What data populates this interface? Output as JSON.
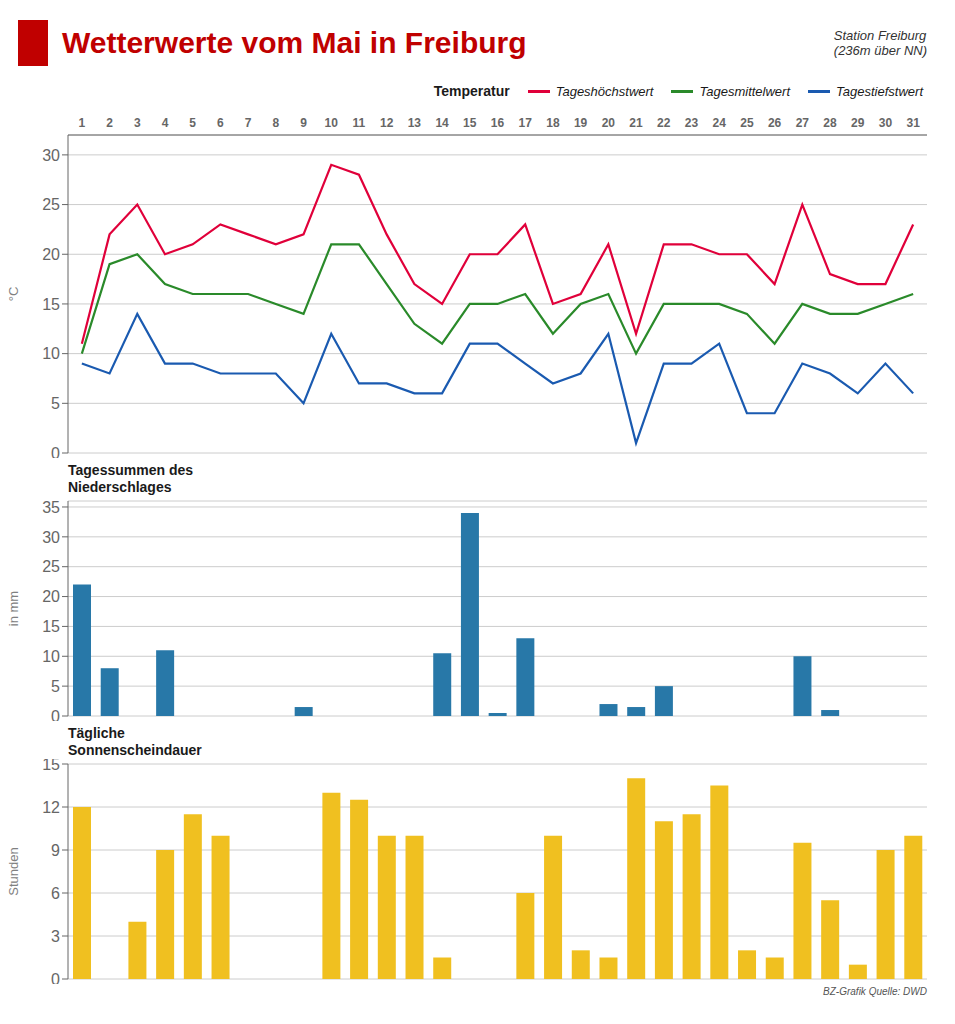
{
  "chart_data": [
    {
      "type": "line",
      "title": "Wetterwerte vom Mai in Freiburg",
      "annotations": [
        "Station Freiburg\n(236m über NN)",
        "Temperatur"
      ],
      "x": [
        1,
        2,
        3,
        4,
        5,
        6,
        7,
        8,
        9,
        10,
        11,
        12,
        13,
        14,
        15,
        16,
        17,
        18,
        19,
        20,
        21,
        22,
        23,
        24,
        25,
        26,
        27,
        28,
        29,
        30,
        31
      ],
      "xlim": [
        0.5,
        31.5
      ],
      "xticks": [
        1,
        2,
        3,
        4,
        5,
        6,
        7,
        8,
        9,
        10,
        11,
        12,
        13,
        14,
        15,
        16,
        17,
        18,
        19,
        20,
        21,
        22,
        23,
        24,
        25,
        26,
        27,
        28,
        29,
        30,
        31
      ],
      "ylim": [
        0,
        32
      ],
      "yticks": [
        0,
        5,
        10,
        15,
        20,
        25,
        30
      ],
      "ylabel": "°C",
      "grid": true,
      "legend": "top",
      "series": [
        {
          "name": "Tageshöchstwert",
          "color": "#e0003a",
          "values": [
            11,
            22,
            25,
            20,
            21,
            23,
            22,
            21,
            22,
            29,
            28,
            22,
            17,
            15,
            20,
            20,
            23,
            15,
            16,
            21,
            12,
            21,
            21,
            20,
            20,
            17,
            25,
            18,
            17,
            17,
            23
          ]
        },
        {
          "name": "Tagesmittelwert",
          "color": "#2a8a2a",
          "values": [
            10,
            19,
            20,
            17,
            16,
            16,
            16,
            15,
            14,
            21,
            21,
            17,
            13,
            11,
            15,
            15,
            16,
            12,
            15,
            16,
            10,
            15,
            15,
            15,
            14,
            11,
            15,
            14,
            14,
            15,
            16
          ]
        },
        {
          "name": "Tagestiefstwert",
          "color": "#1a5ab0",
          "values": [
            9,
            8,
            14,
            9,
            9,
            8,
            8,
            8,
            5,
            12,
            7,
            7,
            6,
            6,
            11,
            11,
            9,
            7,
            8,
            12,
            1,
            9,
            9,
            11,
            4,
            4,
            9,
            8,
            6,
            9,
            6
          ]
        }
      ]
    },
    {
      "type": "bar",
      "annotations": [
        "Tagessummen des\nNiederschlages"
      ],
      "x": [
        1,
        2,
        3,
        4,
        5,
        6,
        7,
        8,
        9,
        10,
        11,
        12,
        13,
        14,
        15,
        16,
        17,
        18,
        19,
        20,
        21,
        22,
        23,
        24,
        25,
        26,
        27,
        28,
        29,
        30,
        31
      ],
      "xlim": [
        0.5,
        31.5
      ],
      "ylim": [
        0,
        36
      ],
      "yticks": [
        0,
        5,
        10,
        15,
        20,
        25,
        30,
        35
      ],
      "ylabel": "in mm",
      "grid": true,
      "tick_labels": "y",
      "color": "#2878a8",
      "values": [
        22,
        8,
        0,
        11,
        0,
        0,
        0,
        0,
        1.5,
        0,
        0,
        0,
        0,
        10.5,
        34,
        0.5,
        13,
        0,
        0,
        2,
        1.5,
        5,
        0,
        0,
        0,
        0,
        10,
        1,
        0,
        0,
        0
      ]
    },
    {
      "type": "bar",
      "annotations": [
        "Tägliche\nSonnenscheindauer",
        "BZ-Grafik  Quelle: DWD"
      ],
      "x": [
        1,
        2,
        3,
        4,
        5,
        6,
        7,
        8,
        9,
        10,
        11,
        12,
        13,
        14,
        15,
        16,
        17,
        18,
        19,
        20,
        21,
        22,
        23,
        24,
        25,
        26,
        27,
        28,
        29,
        30,
        31
      ],
      "xlim": [
        0.5,
        31.5
      ],
      "ylim": [
        0,
        15
      ],
      "yticks": [
        0,
        3,
        6,
        9,
        12,
        15
      ],
      "ylabel": "Stunden",
      "grid": true,
      "tick_labels": "y",
      "color": "#f0c020",
      "values": [
        12,
        0,
        4,
        9,
        11.5,
        10,
        0,
        0,
        0,
        13,
        12.5,
        10,
        10,
        1.5,
        0,
        0,
        6,
        10,
        2,
        1.5,
        14,
        11,
        11.5,
        13.5,
        2,
        1.5,
        9.5,
        5.5,
        1,
        9,
        10
      ]
    }
  ]
}
